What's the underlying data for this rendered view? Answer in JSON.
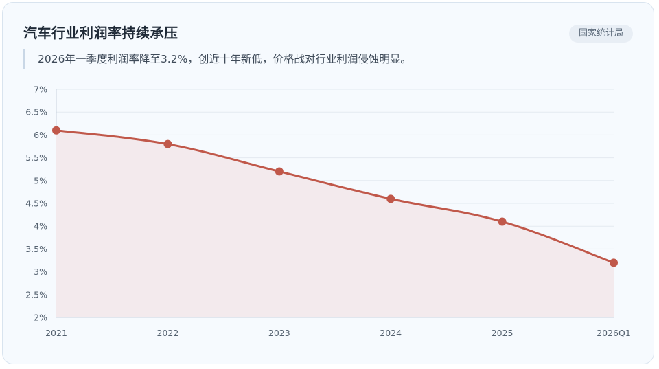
{
  "card": {
    "title": "汽车行业利润率持续承压",
    "badge": "国家统计局",
    "subtitle": "2026年一季度利润率降至3.2%，创近十年新低，价格战对行业利润侵蚀明显。"
  },
  "colors": {
    "line": "#c0584a",
    "area": "#f3eaed",
    "grid": "#e3e9f0",
    "axis": "#c9d3dd",
    "tick_text": "#556270"
  },
  "chart_data": {
    "type": "line",
    "categories": [
      "2021",
      "2022",
      "2023",
      "2024",
      "2025",
      "2026Q1"
    ],
    "series": [
      {
        "values": [
          6.1,
          5.8,
          5.2,
          4.6,
          4.1,
          3.2
        ]
      }
    ],
    "ylim": [
      2,
      7
    ],
    "yticks": [
      "2%",
      "2.5%",
      "3%",
      "3.5%",
      "4%",
      "4.5%",
      "5%",
      "5.5%",
      "6%",
      "6.5%",
      "7%"
    ],
    "xlabel": "",
    "ylabel": "",
    "grid": true,
    "area_fill": true,
    "legend": "none"
  }
}
